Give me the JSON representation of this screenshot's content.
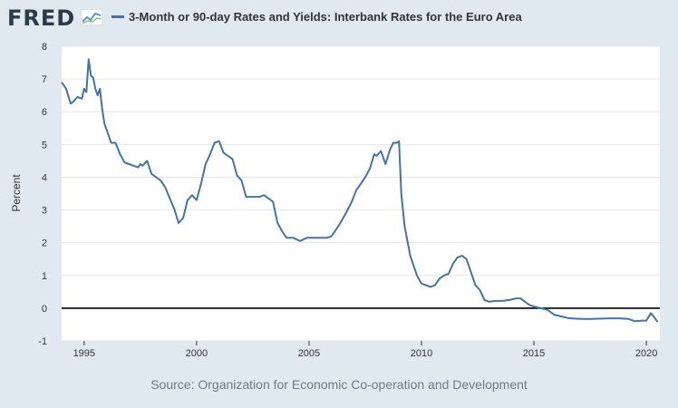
{
  "header": {
    "logo_text": "FRED",
    "series_title": "3-Month or 90-day Rates and Yields: Interbank Rates for the Euro Area"
  },
  "footer": {
    "source": "Source: Organization for Economic Co-operation and Development"
  },
  "colors": {
    "series": "#4572a7",
    "zero_line": "#000000",
    "background": "#e1e9f0"
  },
  "chart_data": {
    "type": "line",
    "title": "",
    "xlabel": "",
    "ylabel": "Percent",
    "ylim": [
      -1,
      8
    ],
    "xlim": [
      1994.0,
      2020.6
    ],
    "y_ticks": [
      "8",
      "7",
      "6",
      "5",
      "4",
      "3",
      "2",
      "1",
      "0",
      "-1"
    ],
    "x_ticks": [
      "1995",
      "2000",
      "2005",
      "2010",
      "2015",
      "2020"
    ],
    "grid": true,
    "series": [
      {
        "name": "3-Month or 90-day Rates and Yields: Interbank Rates for the Euro Area",
        "x": [
          1994.0,
          1994.2,
          1994.4,
          1994.5,
          1994.7,
          1994.9,
          1995.0,
          1995.1,
          1995.2,
          1995.3,
          1995.4,
          1995.5,
          1995.6,
          1995.7,
          1995.8,
          1995.9,
          1996.0,
          1996.2,
          1996.4,
          1996.6,
          1996.8,
          1997.0,
          1997.2,
          1997.4,
          1997.5,
          1997.6,
          1997.8,
          1998.0,
          1998.2,
          1998.4,
          1998.6,
          1998.9,
          1999.0,
          1999.2,
          1999.4,
          1999.6,
          1999.8,
          2000.0,
          2000.2,
          2000.4,
          2000.6,
          2000.8,
          2001.0,
          2001.2,
          2001.4,
          2001.6,
          2001.8,
          2002.0,
          2002.2,
          2002.5,
          2002.8,
          2003.0,
          2003.2,
          2003.4,
          2003.6,
          2003.8,
          2004.0,
          2004.3,
          2004.6,
          2004.9,
          2005.2,
          2005.5,
          2005.8,
          2006.0,
          2006.3,
          2006.6,
          2006.9,
          2007.1,
          2007.3,
          2007.5,
          2007.7,
          2007.9,
          2008.0,
          2008.2,
          2008.4,
          2008.6,
          2008.75,
          2008.9,
          2009.0,
          2009.1,
          2009.25,
          2009.5,
          2009.8,
          2010.0,
          2010.2,
          2010.4,
          2010.6,
          2010.8,
          2011.0,
          2011.2,
          2011.4,
          2011.6,
          2011.8,
          2012.0,
          2012.2,
          2012.4,
          2012.6,
          2012.8,
          2013.0,
          2013.3,
          2013.6,
          2013.9,
          2014.2,
          2014.4,
          2014.6,
          2014.8,
          2015.0,
          2015.3,
          2015.6,
          2015.9,
          2016.2,
          2016.5,
          2016.8,
          2017.2,
          2017.6,
          2018.0,
          2018.4,
          2018.8,
          2019.2,
          2019.5,
          2019.8,
          2020.0,
          2020.2,
          2020.35,
          2020.5
        ],
        "values": [
          6.9,
          6.7,
          6.25,
          6.3,
          6.45,
          6.4,
          6.7,
          6.6,
          7.6,
          7.1,
          7.05,
          6.7,
          6.5,
          6.7,
          6.1,
          5.65,
          5.45,
          5.05,
          5.05,
          4.7,
          4.45,
          4.4,
          4.35,
          4.3,
          4.4,
          4.35,
          4.5,
          4.1,
          4.0,
          3.9,
          3.7,
          3.2,
          3.05,
          2.6,
          2.75,
          3.3,
          3.45,
          3.3,
          3.8,
          4.4,
          4.7,
          5.05,
          5.1,
          4.75,
          4.65,
          4.55,
          4.05,
          3.9,
          3.4,
          3.4,
          3.4,
          3.45,
          3.35,
          3.25,
          2.6,
          2.35,
          2.15,
          2.15,
          2.05,
          2.15,
          2.15,
          2.15,
          2.15,
          2.2,
          2.5,
          2.85,
          3.25,
          3.6,
          3.8,
          4.0,
          4.25,
          4.7,
          4.65,
          4.8,
          4.4,
          4.85,
          5.05,
          5.05,
          5.1,
          3.5,
          2.5,
          1.6,
          1.0,
          0.75,
          0.7,
          0.65,
          0.7,
          0.9,
          1.0,
          1.05,
          1.35,
          1.55,
          1.6,
          1.5,
          1.1,
          0.7,
          0.55,
          0.25,
          0.2,
          0.22,
          0.22,
          0.25,
          0.3,
          0.3,
          0.2,
          0.1,
          0.05,
          0.0,
          -0.05,
          -0.2,
          -0.25,
          -0.3,
          -0.32,
          -0.33,
          -0.33,
          -0.32,
          -0.31,
          -0.31,
          -0.33,
          -0.4,
          -0.38,
          -0.38,
          -0.15,
          -0.28,
          -0.42
        ]
      }
    ]
  }
}
